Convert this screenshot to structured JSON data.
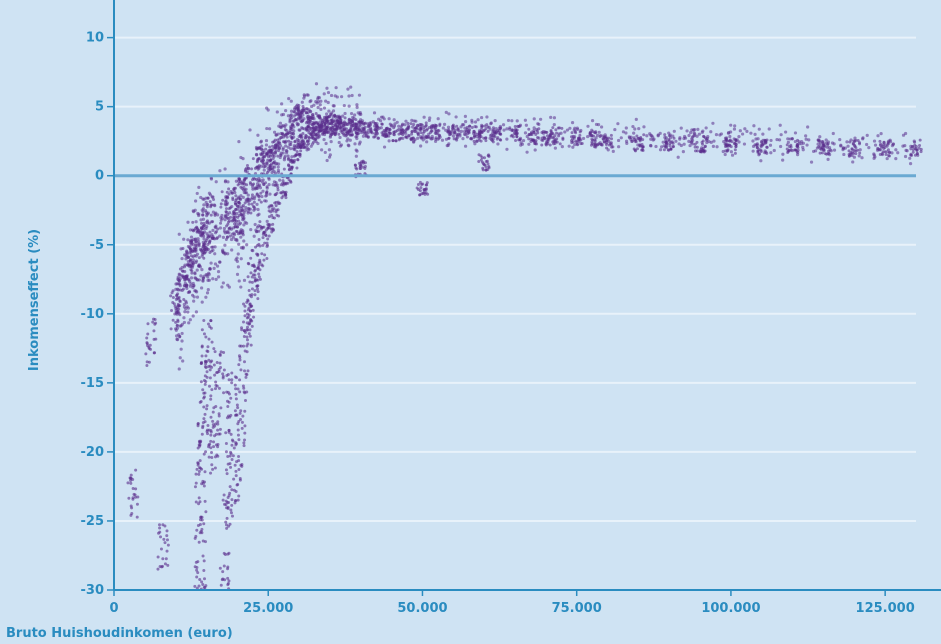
{
  "chart_data": {
    "type": "scatter",
    "title": "",
    "xlabel": "Bruto Huishoudinkomen (euro)",
    "ylabel": "Inkomenseffect (%)",
    "xlim": [
      0,
      130000
    ],
    "ylim": [
      -30,
      12
    ],
    "x_ticks": [
      0,
      25000,
      50000,
      75000,
      100000,
      125000
    ],
    "x_tick_labels": [
      "0",
      "25.000",
      "50.000",
      "75.000",
      "100.000",
      "125.000"
    ],
    "y_ticks": [
      10,
      5,
      0,
      -5,
      -10,
      -15,
      -20,
      -25,
      -30
    ],
    "y_tick_labels": [
      "10",
      "5",
      "0",
      "-5",
      "-10",
      "-15",
      "-20",
      "-25",
      "-30"
    ],
    "grid": true,
    "reference_line_y": 0,
    "colors": {
      "background": "#cfe3f3",
      "grid": "#e8f2fa",
      "points": "#5a2d8c",
      "axis": "#2a8cc0",
      "zero_line": "#6aa9d2"
    },
    "trend_points": [
      {
        "x": 10000,
        "y": -10
      },
      {
        "x": 12000,
        "y": -7
      },
      {
        "x": 14000,
        "y": -5
      },
      {
        "x": 16000,
        "y": -4
      },
      {
        "x": 20000,
        "y": -3
      },
      {
        "x": 22000,
        "y": -1.5
      },
      {
        "x": 25000,
        "y": 0.5
      },
      {
        "x": 28000,
        "y": 3
      },
      {
        "x": 31000,
        "y": 4.5
      },
      {
        "x": 35000,
        "y": 4
      },
      {
        "x": 40000,
        "y": 3.5
      },
      {
        "x": 50000,
        "y": 3.3
      },
      {
        "x": 60000,
        "y": 3.2
      },
      {
        "x": 75000,
        "y": 3
      },
      {
        "x": 90000,
        "y": 2.6
      },
      {
        "x": 100000,
        "y": 2.5
      },
      {
        "x": 115000,
        "y": 2.2
      },
      {
        "x": 130000,
        "y": 2
      }
    ],
    "series": [
      {
        "x": [
          14000,
          14000,
          14000,
          14500,
          15000,
          15000,
          16000,
          16500,
          17000,
          18000,
          18500,
          19000,
          19000,
          20000,
          20500,
          21000,
          21500,
          22000,
          22500,
          23000,
          24000,
          25000,
          26000,
          27000,
          28000,
          29000,
          30000,
          31000,
          32000,
          33000,
          34000,
          35000,
          36000,
          37000,
          38000,
          39000,
          40000,
          42000,
          44000,
          46000,
          48000,
          50000,
          52000,
          55000,
          58000,
          60000,
          62000,
          65000,
          68000,
          70000,
          72000,
          75000,
          78000,
          80000,
          85000,
          90000,
          95000,
          100000,
          105000,
          110000,
          115000,
          120000,
          125000,
          130000,
          13000,
          12000,
          11000,
          10000,
          16000,
          18000,
          20000,
          22000,
          24000,
          26000,
          28000,
          30000,
          32000,
          34000,
          36000,
          14000,
          15000,
          19000,
          20000,
          23000,
          25000,
          40000,
          50000,
          60000,
          3000,
          6000,
          8000
        ],
        "y": [
          -29,
          -25,
          -21,
          -18,
          -15,
          -12,
          -20,
          -17,
          -14,
          -29,
          -24,
          -20,
          -16,
          -22,
          -18,
          -14,
          -11,
          -10,
          -8,
          -6.5,
          -5,
          -4,
          -2.5,
          -1,
          0,
          1,
          2,
          2.5,
          3,
          3.2,
          3.5,
          4,
          3.8,
          3.6,
          3.5,
          3.5,
          3.4,
          3.3,
          3.2,
          3.1,
          3.2,
          3.3,
          3.2,
          3.1,
          3,
          3.1,
          3,
          3,
          2.9,
          2.8,
          2.9,
          2.7,
          2.6,
          2.5,
          2.4,
          2.4,
          2.3,
          2.2,
          2.1,
          2.1,
          2,
          2,
          2,
          2,
          -5,
          -7,
          -8.5,
          -10,
          -3,
          -2.5,
          -2.5,
          -1,
          0.5,
          2,
          3,
          4.5,
          4,
          3.7,
          3.5,
          -4.5,
          -4,
          -3,
          -2,
          -0.5,
          1,
          0.5,
          -1,
          1,
          -23,
          -12,
          -27
        ]
      }
    ]
  }
}
